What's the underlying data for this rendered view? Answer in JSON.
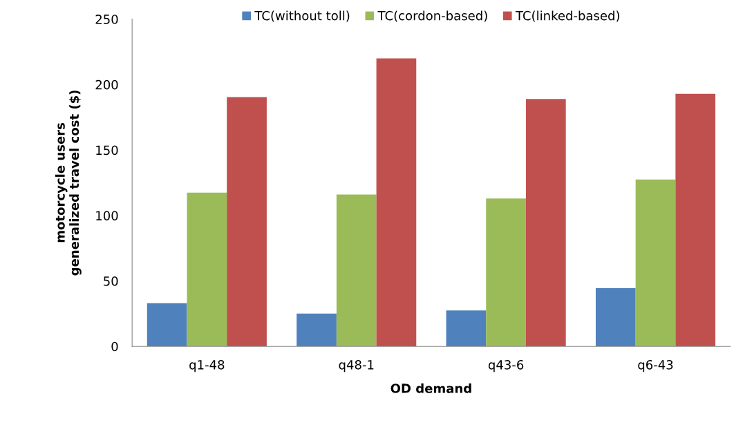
{
  "chart_data": {
    "type": "bar",
    "xlabel": "OD demand",
    "ylabel": "motorcycle users\ngeneralized travel cost ($)",
    "categories": [
      "q1-48",
      "q48-1",
      "q43-6",
      "q6-43"
    ],
    "series": [
      {
        "name": "TC(without toll)",
        "color": "#4f81bd",
        "values": [
          33,
          25,
          27.5,
          44.5
        ]
      },
      {
        "name": "TC(cordon-based)",
        "color": "#9bbb59",
        "values": [
          117.5,
          116,
          113,
          127.5
        ]
      },
      {
        "name": "TC(linked-based)",
        "color": "#c0504d",
        "values": [
          190.5,
          220,
          189,
          193
        ]
      }
    ],
    "ylim": [
      0,
      250
    ],
    "yticks": [
      0,
      50,
      100,
      150,
      200,
      250
    ],
    "grid": false,
    "legend": "top"
  }
}
